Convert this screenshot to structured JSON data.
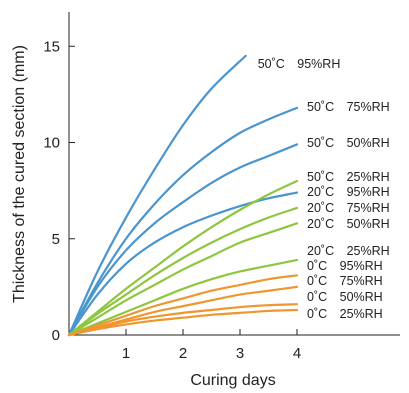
{
  "chart_data": {
    "type": "line",
    "xlabel": "Curing days",
    "ylabel": "Thickness of the cured section (mm)",
    "xlim": [
      0,
      4.5
    ],
    "ylim": [
      0,
      17
    ],
    "x_ticks": [
      1,
      2,
      3,
      4
    ],
    "y_ticks": [
      0,
      5,
      10,
      15
    ],
    "grid": false,
    "series": [
      {
        "name": "50˚C　95%RH",
        "color": "#4b95cf",
        "x": [
          0,
          0.5,
          1,
          1.5,
          2,
          2.5,
          3.1
        ],
        "y": [
          0,
          3.3,
          6.1,
          8.6,
          10.9,
          12.8,
          14.5
        ]
      },
      {
        "name": "50˚C　75%RH",
        "color": "#4b95cf",
        "x": [
          0,
          0.5,
          1,
          1.5,
          2,
          2.5,
          3,
          3.5,
          4
        ],
        "y": [
          0,
          2.7,
          5.0,
          6.8,
          8.3,
          9.5,
          10.5,
          11.2,
          11.8
        ]
      },
      {
        "name": "50˚C　50%RH",
        "color": "#4b95cf",
        "x": [
          0,
          0.5,
          1,
          1.5,
          2,
          2.5,
          3,
          3.5,
          4
        ],
        "y": [
          0,
          2.5,
          4.4,
          5.8,
          6.9,
          7.9,
          8.7,
          9.3,
          9.9
        ]
      },
      {
        "name": "50˚C　25%RH",
        "color": "#4b95cf",
        "x": [
          0,
          0.5,
          1,
          1.5,
          2,
          2.5,
          3,
          3.5,
          4
        ],
        "y": [
          0,
          2.1,
          3.7,
          4.8,
          5.6,
          6.2,
          6.7,
          7.1,
          7.4
        ]
      },
      {
        "name": "20˚C　95%RH",
        "color": "#8ec63f",
        "x": [
          0,
          0.5,
          1,
          1.5,
          2,
          2.5,
          3,
          3.5,
          4
        ],
        "y": [
          0,
          1.2,
          2.4,
          3.5,
          4.6,
          5.6,
          6.5,
          7.3,
          8.0
        ]
      },
      {
        "name": "20˚C　75%RH",
        "color": "#8ec63f",
        "x": [
          0,
          0.5,
          1,
          1.5,
          2,
          2.5,
          3,
          3.5,
          4
        ],
        "y": [
          0,
          1.1,
          2.1,
          3.1,
          4.0,
          4.8,
          5.5,
          6.1,
          6.6
        ]
      },
      {
        "name": "20˚C　50%RH",
        "color": "#8ec63f",
        "x": [
          0,
          0.5,
          1,
          1.5,
          2,
          2.5,
          3,
          3.5,
          4
        ],
        "y": [
          0,
          0.9,
          1.8,
          2.6,
          3.4,
          4.1,
          4.8,
          5.3,
          5.8
        ]
      },
      {
        "name": "20˚C　25%RH",
        "color": "#8ec63f",
        "x": [
          0,
          0.5,
          1,
          1.5,
          2,
          2.5,
          3,
          3.5,
          4
        ],
        "y": [
          0,
          0.6,
          1.2,
          1.8,
          2.4,
          2.9,
          3.3,
          3.6,
          3.9
        ]
      },
      {
        "name": "0˚C　95%RH",
        "color": "#f0962f",
        "x": [
          0,
          0.5,
          1,
          1.5,
          2,
          2.5,
          3,
          3.5,
          4
        ],
        "y": [
          0,
          0.5,
          1.0,
          1.5,
          1.9,
          2.3,
          2.6,
          2.9,
          3.1
        ]
      },
      {
        "name": "0˚C　75%RH",
        "color": "#f0962f",
        "x": [
          0,
          0.5,
          1,
          1.5,
          2,
          2.5,
          3,
          3.5,
          4
        ],
        "y": [
          0,
          0.4,
          0.8,
          1.2,
          1.5,
          1.8,
          2.1,
          2.3,
          2.5
        ]
      },
      {
        "name": "0˚C　50%RH",
        "color": "#f0962f",
        "x": [
          0,
          0.5,
          1,
          1.5,
          2,
          2.5,
          3,
          3.5,
          4
        ],
        "y": [
          0,
          0.35,
          0.7,
          0.95,
          1.15,
          1.3,
          1.45,
          1.55,
          1.6
        ]
      },
      {
        "name": "0˚C　25%RH",
        "color": "#f0962f",
        "x": [
          0,
          0.5,
          1,
          1.5,
          2,
          2.5,
          3,
          3.5,
          4
        ],
        "y": [
          0,
          0.3,
          0.55,
          0.75,
          0.9,
          1.05,
          1.15,
          1.25,
          1.3
        ]
      }
    ]
  }
}
